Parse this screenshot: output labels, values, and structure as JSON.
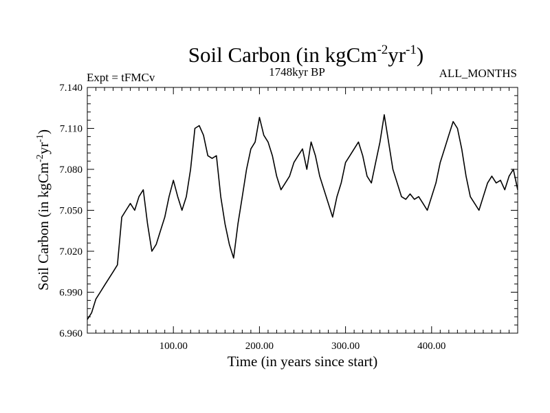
{
  "chart_data": {
    "type": "line",
    "title": {
      "main": "Soil Carbon (in kgCm",
      "sup1": "-2",
      "mid": "yr",
      "sup2": "-1",
      "end": ")"
    },
    "experiment": "Expt = tFMCv",
    "period": "1748kyr BP",
    "months": "ALL_MONTHS",
    "xlabel": "Time (in years since start)",
    "ylabel": {
      "main": "Soil Carbon (in kgCm",
      "sup1": "-2",
      "mid": "yr",
      "sup2": "-1",
      "end": ")"
    },
    "xlim": [
      0,
      500
    ],
    "ylim": [
      6.96,
      7.14
    ],
    "x_ticks": [
      100,
      200,
      300,
      400
    ],
    "x_tick_labels": [
      "100.00",
      "200.00",
      "300.00",
      "400.00"
    ],
    "y_ticks": [
      6.96,
      6.99,
      7.02,
      7.05,
      7.08,
      7.11,
      7.14
    ],
    "y_tick_labels": [
      "6.960",
      "6.990",
      "7.020",
      "7.050",
      "7.080",
      "7.110",
      "7.140"
    ],
    "grid": false,
    "line_color": "#000000",
    "series": [
      {
        "name": "Soil Carbon",
        "x": [
          0,
          5,
          10,
          15,
          20,
          25,
          30,
          35,
          40,
          45,
          50,
          55,
          60,
          65,
          70,
          75,
          80,
          85,
          90,
          95,
          100,
          105,
          110,
          115,
          120,
          125,
          130,
          135,
          140,
          145,
          150,
          155,
          160,
          165,
          170,
          175,
          180,
          185,
          190,
          195,
          200,
          205,
          210,
          215,
          220,
          225,
          230,
          235,
          240,
          245,
          250,
          255,
          260,
          265,
          270,
          275,
          280,
          285,
          290,
          295,
          300,
          305,
          310,
          315,
          320,
          325,
          330,
          335,
          340,
          345,
          350,
          355,
          360,
          365,
          370,
          375,
          380,
          385,
          390,
          395,
          400,
          405,
          410,
          415,
          420,
          425,
          430,
          435,
          440,
          445,
          450,
          455,
          460,
          465,
          470,
          475,
          480,
          485,
          490,
          495,
          500
        ],
        "y": [
          6.97,
          6.975,
          6.985,
          6.99,
          6.995,
          7.0,
          7.005,
          7.01,
          7.045,
          7.05,
          7.055,
          7.05,
          7.06,
          7.065,
          7.04,
          7.02,
          7.025,
          7.035,
          7.045,
          7.06,
          7.072,
          7.06,
          7.05,
          7.06,
          7.08,
          7.11,
          7.112,
          7.105,
          7.09,
          7.088,
          7.09,
          7.06,
          7.04,
          7.025,
          7.015,
          7.04,
          7.06,
          7.08,
          7.095,
          7.1,
          7.118,
          7.105,
          7.1,
          7.09,
          7.075,
          7.065,
          7.07,
          7.075,
          7.085,
          7.09,
          7.095,
          7.08,
          7.1,
          7.09,
          7.075,
          7.065,
          7.055,
          7.045,
          7.06,
          7.07,
          7.085,
          7.09,
          7.095,
          7.1,
          7.09,
          7.075,
          7.07,
          7.085,
          7.1,
          7.12,
          7.1,
          7.08,
          7.07,
          7.06,
          7.058,
          7.062,
          7.058,
          7.06,
          7.055,
          7.05,
          7.06,
          7.07,
          7.085,
          7.095,
          7.105,
          7.115,
          7.11,
          7.095,
          7.075,
          7.06,
          7.055,
          7.05,
          7.06,
          7.07,
          7.075,
          7.07,
          7.072,
          7.065,
          7.075,
          7.08,
          7.065
        ]
      }
    ]
  }
}
